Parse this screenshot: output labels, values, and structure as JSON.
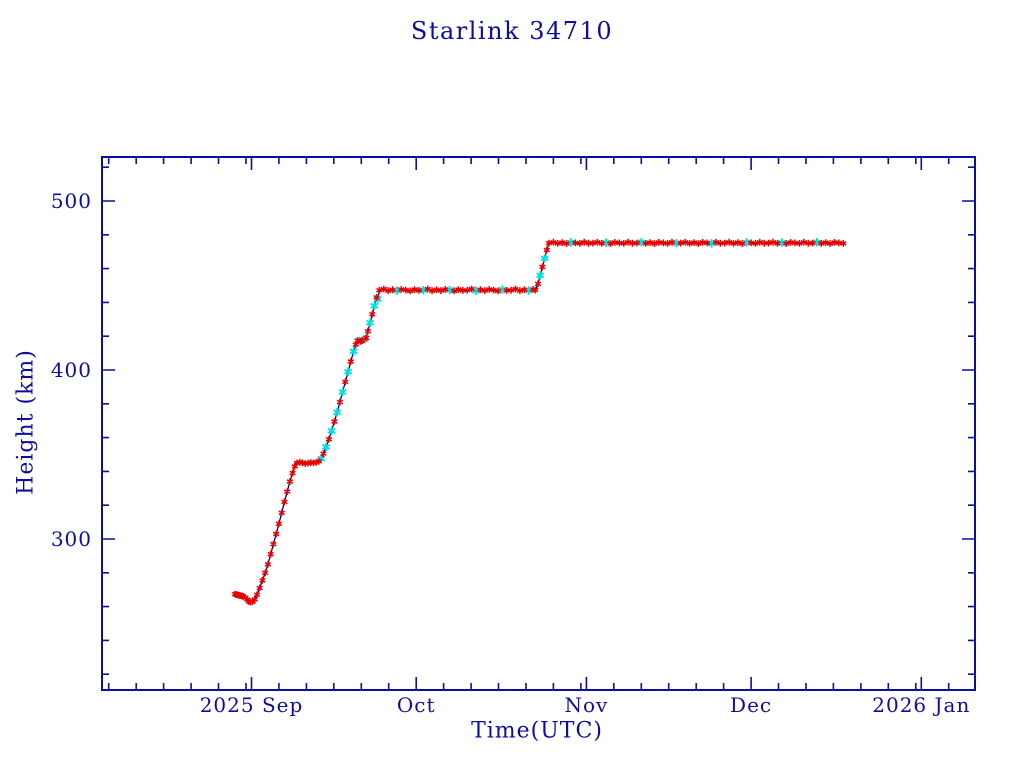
{
  "page": {
    "background": "#ffffff"
  },
  "chart": {
    "title": "Starlink 34710",
    "xlabel": "Time(UTC)",
    "ylabel": "Height (km)",
    "colors": {
      "axis_and_text": "#0d0da0",
      "line": "#00007d",
      "primary_marker": "#e80000",
      "secondary_marker": "#00e0e0",
      "background": "#ffffff"
    }
  },
  "chart_data": {
    "type": "line",
    "title": "Starlink 34710",
    "xlabel": "Time(UTC)",
    "ylabel": "Height (km)",
    "legend": "none",
    "grid": false,
    "epoch_day0": "2025-08-29",
    "x_axis": {
      "range_days": [
        -24.2,
        134.8
      ],
      "major_ticks": [
        {
          "label": "2025 Sep",
          "day": 3
        },
        {
          "label": "Oct",
          "day": 33
        },
        {
          "label": "Nov",
          "day": 64
        },
        {
          "label": "Dec",
          "day": 94
        },
        {
          "label": "2026 Jan",
          "day": 125
        }
      ],
      "minor_tick_days": [
        -23,
        -18,
        -13,
        -8,
        -3,
        2,
        8,
        13,
        18,
        23,
        28,
        38,
        43,
        48,
        53,
        58,
        63,
        69,
        74,
        79,
        84,
        89,
        99,
        104,
        109,
        114,
        119,
        124,
        130
      ]
    },
    "y_axis": {
      "range_km": [
        211,
        526
      ],
      "major_ticks": [
        {
          "label": "300",
          "value": 300
        },
        {
          "label": "400",
          "value": 400
        },
        {
          "label": "500",
          "value": 500
        }
      ],
      "minor_tick_values": [
        220,
        240,
        260,
        280,
        320,
        340,
        360,
        380,
        420,
        440,
        460,
        480,
        520
      ]
    },
    "series": [
      {
        "name": "height-primary",
        "marker": "asterisk",
        "color": "#e80000"
      },
      {
        "name": "height-secondary",
        "marker": "asterisk",
        "color": "#00e0e0"
      }
    ],
    "points_format": "[day_offset_from_epoch, height_km, 1_if_secondary_series]",
    "points": [
      [
        0,
        267.4
      ],
      [
        0.25,
        267.1
      ],
      [
        0.5,
        266.9
      ],
      [
        0.75,
        266.7
      ],
      [
        1,
        266.5
      ],
      [
        1.25,
        266.3
      ],
      [
        1.5,
        266
      ],
      [
        1.9,
        265.3
      ],
      [
        2.2,
        264.2
      ],
      [
        2.5,
        263.1
      ],
      [
        2.8,
        262.7
      ],
      [
        3.2,
        262.9
      ],
      [
        3.6,
        264.3
      ],
      [
        4,
        267
      ],
      [
        4.5,
        271
      ],
      [
        5,
        275.5
      ],
      [
        5.5,
        280
      ],
      [
        6,
        285
      ],
      [
        6.5,
        291
      ],
      [
        7,
        297
      ],
      [
        7.5,
        303
      ],
      [
        8,
        309
      ],
      [
        8.5,
        315.5
      ],
      [
        9,
        322
      ],
      [
        9.5,
        328
      ],
      [
        10,
        334
      ],
      [
        10.5,
        339
      ],
      [
        10.9,
        343
      ],
      [
        11.3,
        345
      ],
      [
        11.8,
        345.4
      ],
      [
        12.3,
        345.1
      ],
      [
        12.8,
        344.6
      ],
      [
        13.3,
        344.9
      ],
      [
        13.8,
        345.2
      ],
      [
        14.3,
        345
      ],
      [
        14.8,
        345.4
      ],
      [
        15.3,
        346
      ],
      [
        15.7,
        347.5,
        1
      ],
      [
        16.1,
        350.5
      ],
      [
        16.6,
        354.5,
        1
      ],
      [
        17.1,
        359
      ],
      [
        17.6,
        364,
        1
      ],
      [
        18.1,
        369.5
      ],
      [
        18.6,
        375,
        1
      ],
      [
        19.1,
        381
      ],
      [
        19.6,
        387,
        1
      ],
      [
        20.1,
        393
      ],
      [
        20.6,
        399,
        1
      ],
      [
        21.1,
        405
      ],
      [
        21.6,
        411,
        1
      ],
      [
        22,
        415
      ],
      [
        22.3,
        417.4
      ],
      [
        22.6,
        417.1,
        1
      ],
      [
        22.9,
        417
      ],
      [
        23.2,
        417.4
      ],
      [
        23.6,
        418.3,
        1
      ],
      [
        23.9,
        419
      ],
      [
        24.2,
        423
      ],
      [
        24.6,
        428,
        1
      ],
      [
        25,
        433
      ],
      [
        25.4,
        438,
        1
      ],
      [
        25.8,
        443
      ],
      [
        26,
        442,
        1
      ],
      [
        26.3,
        447.2
      ],
      [
        27.1,
        447.9
      ],
      [
        27.9,
        446.9
      ],
      [
        28.7,
        447.5
      ],
      [
        29.5,
        447,
        1
      ],
      [
        30.3,
        447.7
      ],
      [
        31.1,
        447.3
      ],
      [
        31.9,
        446.8
      ],
      [
        32.7,
        447.6
      ],
      [
        33.5,
        447.1
      ],
      [
        34.3,
        447.2,
        1
      ],
      [
        35.1,
        447.9
      ],
      [
        35.9,
        446.9
      ],
      [
        36.7,
        447.5
      ],
      [
        37.5,
        447
      ],
      [
        38.3,
        447.7
      ],
      [
        39.1,
        447.3,
        1
      ],
      [
        39.9,
        446.8
      ],
      [
        40.7,
        447.6
      ],
      [
        41.5,
        447.1
      ],
      [
        42.3,
        447.2
      ],
      [
        43.1,
        447.9
      ],
      [
        43.9,
        446.9,
        1
      ],
      [
        44.7,
        447.5
      ],
      [
        45.5,
        447
      ],
      [
        46.3,
        447.7
      ],
      [
        47.1,
        447.3
      ],
      [
        47.9,
        446.8
      ],
      [
        48.7,
        447.6,
        1
      ],
      [
        49.5,
        447.1
      ],
      [
        50.3,
        447.2
      ],
      [
        51.1,
        447.9
      ],
      [
        51.9,
        446.9
      ],
      [
        52.7,
        447.5
      ],
      [
        53.5,
        447,
        1
      ],
      [
        54.3,
        447.7
      ],
      [
        54.7,
        447.3
      ],
      [
        55.2,
        451
      ],
      [
        55.6,
        456,
        1
      ],
      [
        56,
        461
      ],
      [
        56.4,
        466,
        1
      ],
      [
        56.8,
        471
      ],
      [
        57.2,
        475.1
      ],
      [
        58,
        475.6
      ],
      [
        58.8,
        474.9
      ],
      [
        59.6,
        475.4
      ],
      [
        60.4,
        474.8
      ],
      [
        61.2,
        475.5,
        1
      ],
      [
        62,
        475.2
      ],
      [
        62.8,
        474.9
      ],
      [
        63.6,
        475.6
      ],
      [
        64.4,
        475
      ],
      [
        65.2,
        475.1
      ],
      [
        66,
        475.6
      ],
      [
        66.8,
        474.9
      ],
      [
        67.6,
        475.4,
        1
      ],
      [
        68.4,
        474.8
      ],
      [
        69.2,
        475.5
      ],
      [
        70,
        475.2
      ],
      [
        70.8,
        474.9
      ],
      [
        71.6,
        475.6
      ],
      [
        72.4,
        475
      ],
      [
        73.2,
        475.1
      ],
      [
        74,
        475.6,
        1
      ],
      [
        74.8,
        474.9
      ],
      [
        75.6,
        475.4
      ],
      [
        76.4,
        474.8
      ],
      [
        77.2,
        475.5
      ],
      [
        78,
        475.2
      ],
      [
        78.8,
        474.9
      ],
      [
        79.6,
        475.6
      ],
      [
        80.4,
        475,
        1
      ],
      [
        81.2,
        475.1
      ],
      [
        82,
        475.6
      ],
      [
        82.8,
        474.9
      ],
      [
        83.6,
        475.4
      ],
      [
        84.4,
        474.8
      ],
      [
        85.2,
        475.5
      ],
      [
        86,
        475.2
      ],
      [
        86.8,
        474.9,
        1
      ],
      [
        87.6,
        475.6
      ],
      [
        88.4,
        475
      ],
      [
        89.2,
        475.1
      ],
      [
        90,
        475.6
      ],
      [
        90.8,
        474.9
      ],
      [
        91.6,
        475.4
      ],
      [
        92.4,
        474.8
      ],
      [
        93.2,
        475.5,
        1
      ],
      [
        94,
        475.2
      ],
      [
        94.8,
        474.9
      ],
      [
        95.6,
        475.6
      ],
      [
        96.4,
        475
      ],
      [
        97.2,
        475.1
      ],
      [
        98,
        475.6
      ],
      [
        98.8,
        474.9
      ],
      [
        99.6,
        475.4,
        1
      ],
      [
        100.4,
        474.8
      ],
      [
        101.2,
        475.5
      ],
      [
        102,
        475.2
      ],
      [
        102.8,
        474.9
      ],
      [
        103.6,
        475.6
      ],
      [
        104.4,
        475
      ],
      [
        105.2,
        475.1
      ],
      [
        106,
        475.6,
        1
      ],
      [
        106.8,
        474.9
      ],
      [
        107.6,
        475.4
      ],
      [
        108.4,
        474.8
      ],
      [
        109.2,
        475.5
      ],
      [
        110,
        475.2
      ],
      [
        110.8,
        474.9
      ]
    ]
  }
}
